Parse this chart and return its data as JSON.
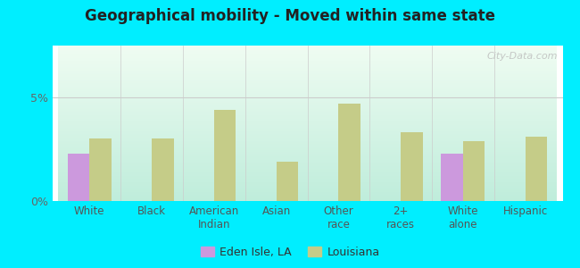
{
  "title": "Geographical mobility - Moved within same state",
  "categories": [
    "White",
    "Black",
    "American\nIndian",
    "Asian",
    "Other\nrace",
    "2+\nraces",
    "White\nalone",
    "Hispanic"
  ],
  "eden_isle_values": [
    2.3,
    0,
    0,
    0,
    0,
    0,
    2.3,
    0
  ],
  "louisiana_values": [
    3.0,
    3.0,
    4.4,
    1.9,
    4.7,
    3.3,
    2.9,
    3.1
  ],
  "eden_isle_color": "#cc99dd",
  "louisiana_color": "#c5cc88",
  "ylim": [
    0,
    7.5
  ],
  "yticks": [
    0,
    5
  ],
  "ytick_labels": [
    "0%",
    "5%"
  ],
  "bar_width": 0.35,
  "outer_bg": "#00eeff",
  "chart_bg_topleft": "#d0ede0",
  "chart_bg_topright": "#eef8f0",
  "chart_bg_bottomleft": "#b8e8d8",
  "chart_bg_bottomright": "#d8f0e8",
  "legend_eden": "Eden Isle, LA",
  "legend_louisiana": "Louisiana",
  "watermark": "City-Data.com"
}
